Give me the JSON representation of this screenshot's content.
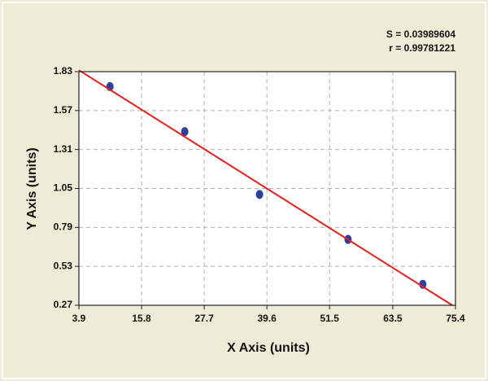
{
  "chart_data": {
    "type": "scatter",
    "annotations": [
      "S = 0.03989604",
      "r = 0.99781221"
    ],
    "x_label": "X Axis (units)",
    "y_label": "Y Axis (units)",
    "xlim": [
      3.9,
      75.4
    ],
    "xticks": [
      3.9,
      15.8,
      27.7,
      39.6,
      51.5,
      63.5,
      75.4
    ],
    "ylim": [
      0.27,
      1.83
    ],
    "yticks": [
      0.27,
      0.53,
      0.79,
      1.05,
      1.31,
      1.57,
      1.83
    ],
    "grid": true,
    "series": [
      {
        "type": "scatter",
        "color": "#2f3f9e",
        "x": [
          9.8,
          24.0,
          38.2,
          55.0,
          69.2
        ],
        "values": [
          1.73,
          1.43,
          1.01,
          0.71,
          0.41
        ]
      },
      {
        "type": "line",
        "color": "#e3211c",
        "x": [
          3.9,
          74.8
        ],
        "values": [
          1.84,
          0.27
        ]
      }
    ]
  }
}
